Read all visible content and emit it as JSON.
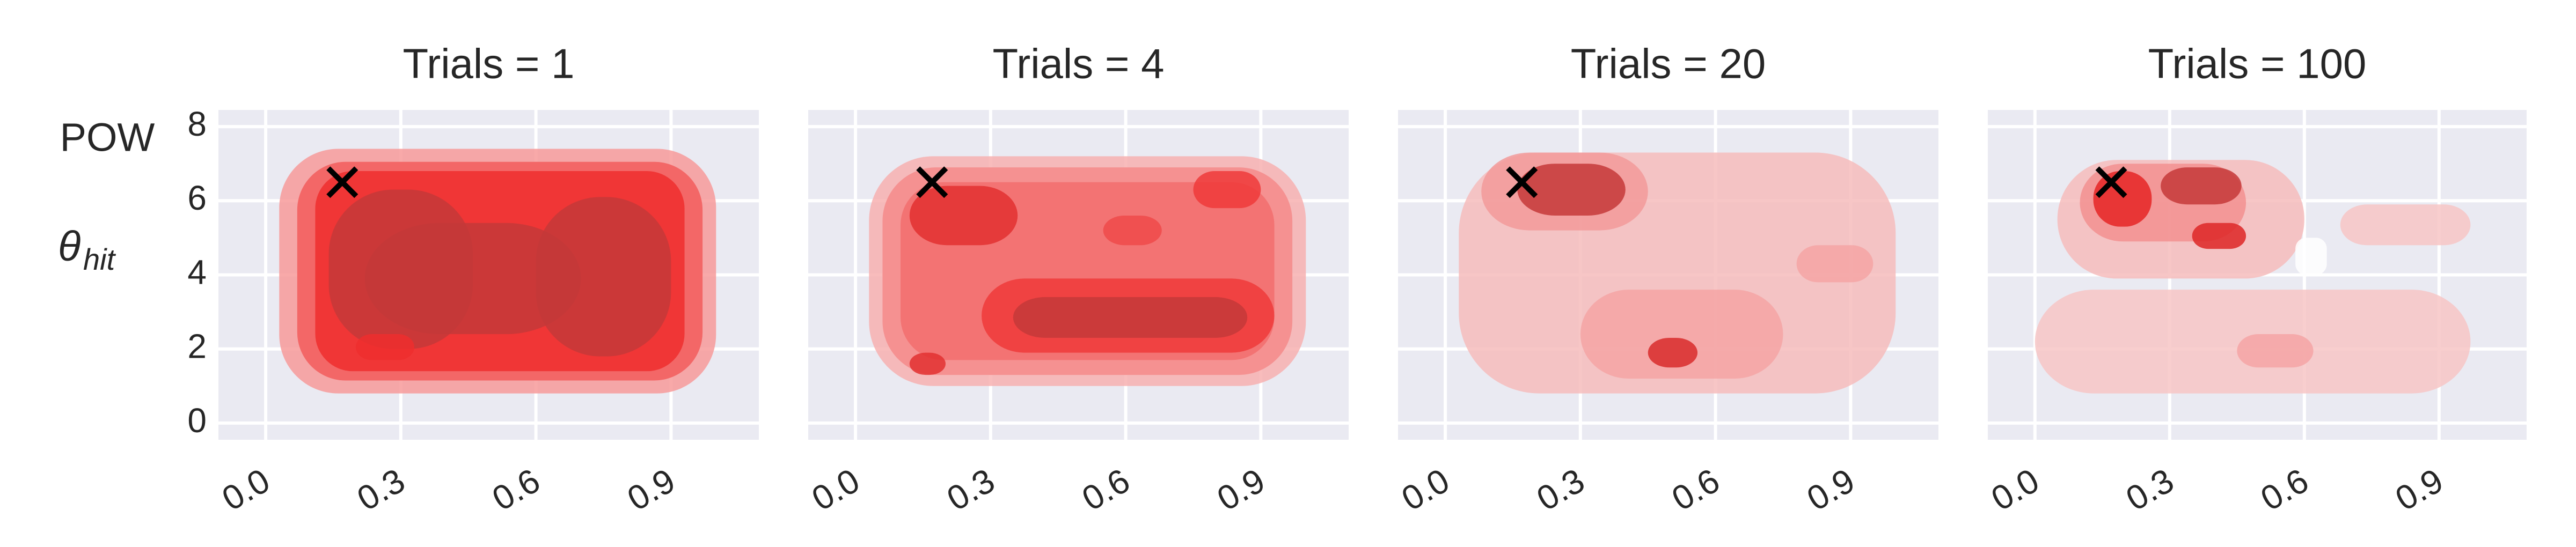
{
  "chart_data": [
    {
      "type": "kde",
      "title": "Trials = 1",
      "ylabel": "POW",
      "ylabel_symbol": "θ",
      "ylabel_subscript": "hit",
      "xlim": [
        -0.105,
        1.095
      ],
      "ylim": [
        -0.45,
        8.45
      ],
      "xticks": [
        {
          "value": 0,
          "label": "0.0"
        },
        0.3,
        0.6,
        0.9
      ],
      "yticks": [
        0,
        2,
        4,
        6,
        8
      ],
      "marker": {
        "x": 0.17,
        "y": 6.5
      },
      "color": "#ff2020",
      "grid": true
    },
    {
      "type": "kde",
      "title": "Trials = 4",
      "xlim": [
        -0.105,
        1.095
      ],
      "ylim": [
        -0.45,
        8.45
      ],
      "xticks": [
        {
          "value": 0,
          "label": "0.0"
        },
        0.3,
        0.6,
        0.9
      ],
      "yticks": [
        0,
        2,
        4,
        6,
        8
      ],
      "marker": {
        "x": 0.17,
        "y": 6.5
      },
      "color": "#ff2020",
      "grid": true
    },
    {
      "type": "kde",
      "title": "Trials = 20",
      "xlim": [
        -0.105,
        1.095
      ],
      "ylim": [
        -0.45,
        8.45
      ],
      "xticks": [
        {
          "value": 0,
          "label": "0.0"
        },
        0.3,
        0.6,
        0.9
      ],
      "yticks": [
        0,
        2,
        4,
        6,
        8
      ],
      "marker": {
        "x": 0.17,
        "y": 6.5
      },
      "color": "#ff2020",
      "grid": true
    },
    {
      "type": "kde",
      "title": "Trials = 100",
      "xlim": [
        -0.105,
        1.095
      ],
      "ylim": [
        -0.45,
        8.45
      ],
      "xticks": [
        {
          "value": 0,
          "label": "0.0"
        },
        0.3,
        0.6,
        0.9
      ],
      "yticks": [
        0,
        2,
        4,
        6,
        8
      ],
      "marker": {
        "x": 0.17,
        "y": 6.5
      },
      "color": "#ff2020",
      "grid": true
    }
  ]
}
